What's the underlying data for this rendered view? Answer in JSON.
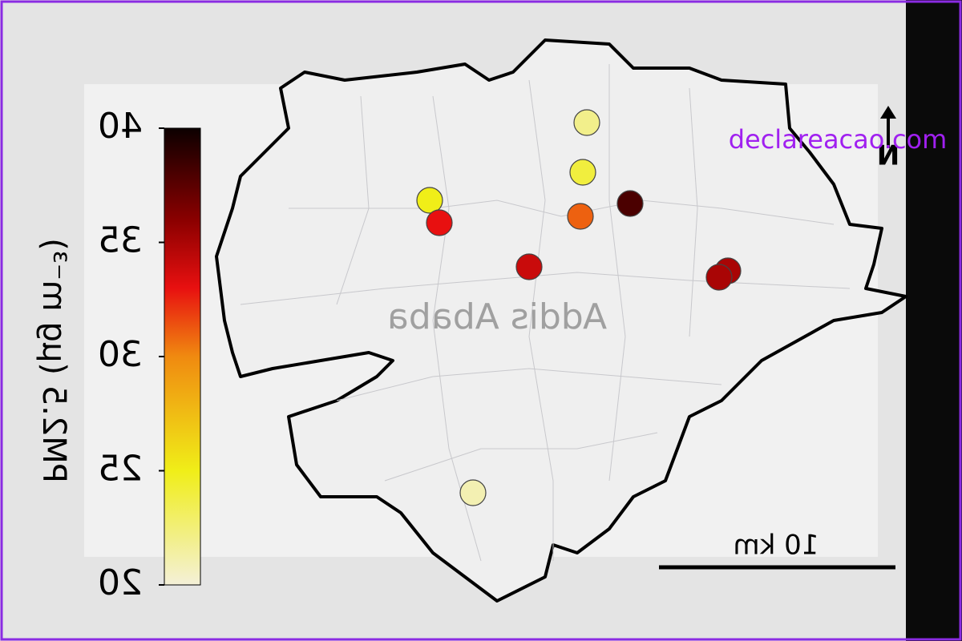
{
  "map": {
    "place_label": "Addis Ababa",
    "scale_bar": "10 km",
    "north": "N",
    "watermark": "declareacao.com"
  },
  "colorbar": {
    "title": "PM2.5 (μg m⁻³)",
    "lim": [
      20,
      40
    ],
    "ticks": [
      20,
      25,
      30,
      35,
      40
    ]
  },
  "stations": [
    {
      "value": 22
    },
    {
      "value": 24
    },
    {
      "value": 25
    },
    {
      "value": 33
    },
    {
      "value": 31
    },
    {
      "value": 38
    },
    {
      "value": 34
    },
    {
      "value": 35
    },
    {
      "value": 35
    },
    {
      "value": 21
    }
  ]
}
